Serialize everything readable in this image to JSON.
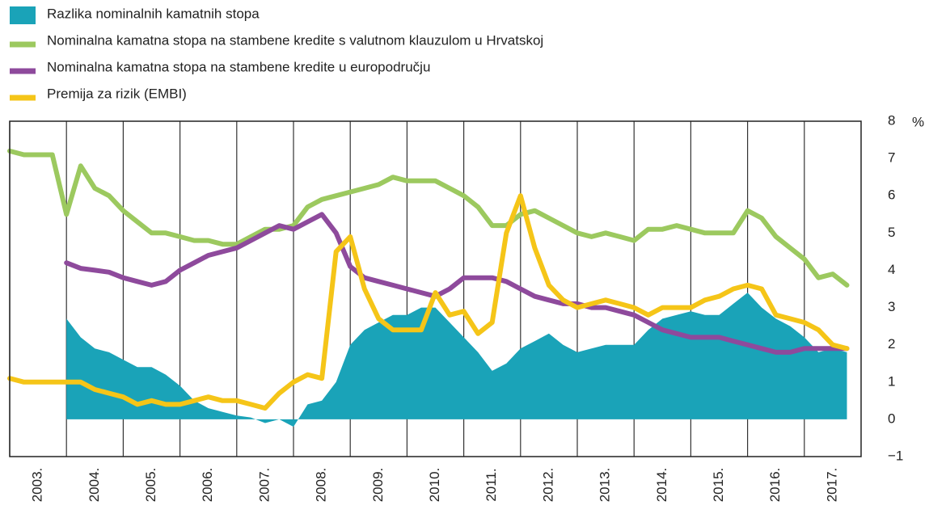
{
  "chart_data": {
    "type": "line",
    "x": [
      2003,
      2003.25,
      2003.5,
      2003.75,
      2004,
      2004.25,
      2004.5,
      2004.75,
      2005,
      2005.25,
      2005.5,
      2005.75,
      2006,
      2006.25,
      2006.5,
      2006.75,
      2007,
      2007.25,
      2007.5,
      2007.75,
      2008,
      2008.25,
      2008.5,
      2008.75,
      2009,
      2009.25,
      2009.5,
      2009.75,
      2010,
      2010.25,
      2010.5,
      2010.75,
      2011,
      2011.25,
      2011.5,
      2011.75,
      2012,
      2012.25,
      2012.5,
      2012.75,
      2013,
      2013.25,
      2013.5,
      2013.75,
      2014,
      2014.25,
      2014.5,
      2014.75,
      2015,
      2015.25,
      2015.5,
      2015.75,
      2016,
      2016.25,
      2016.5,
      2016.75,
      2017,
      2017.25,
      2017.5,
      2017.75
    ],
    "series": [
      {
        "name": "Razlika nominalnih kamatnih stopa",
        "kind": "area",
        "color": "#1aa3b8",
        "values": [
          null,
          null,
          null,
          null,
          2.7,
          2.2,
          1.9,
          1.8,
          1.6,
          1.4,
          1.4,
          1.2,
          0.9,
          0.5,
          0.3,
          0.2,
          0.1,
          0.05,
          -0.1,
          0.0,
          -0.2,
          0.4,
          0.5,
          1.0,
          2.0,
          2.4,
          2.6,
          2.8,
          2.8,
          3.0,
          3.0,
          2.6,
          2.2,
          1.8,
          1.3,
          1.5,
          1.9,
          2.1,
          2.3,
          2.0,
          1.8,
          1.9,
          2.0,
          2.0,
          2.0,
          2.4,
          2.7,
          2.8,
          2.9,
          2.8,
          2.8,
          3.1,
          3.4,
          3.0,
          2.7,
          2.5,
          2.2,
          1.8,
          1.9,
          1.8
        ]
      },
      {
        "name": "Nominalna kamatna stopa na stambene kredite s valutnom klauzulom u Hrvatskoj",
        "color": "#9cc95f",
        "values": [
          7.2,
          7.1,
          7.1,
          7.1,
          5.5,
          6.8,
          6.2,
          6.0,
          5.6,
          5.3,
          5.0,
          5.0,
          4.9,
          4.8,
          4.8,
          4.7,
          4.7,
          4.9,
          5.1,
          5.1,
          5.2,
          5.7,
          5.9,
          6.0,
          6.1,
          6.2,
          6.3,
          6.5,
          6.4,
          6.4,
          6.4,
          6.2,
          6.0,
          5.7,
          5.2,
          5.2,
          5.5,
          5.6,
          5.4,
          5.2,
          5.0,
          4.9,
          5.0,
          4.9,
          4.8,
          5.1,
          5.1,
          5.2,
          5.1,
          5.0,
          5.0,
          5.0,
          5.6,
          5.4,
          4.9,
          4.6,
          4.3,
          3.8,
          3.9,
          3.6
        ]
      },
      {
        "name": "Nominalna kamatna stopa na stambene kredite u europodručju",
        "color": "#8e4a9c",
        "values": [
          null,
          null,
          null,
          null,
          4.2,
          4.05,
          4.0,
          3.95,
          3.8,
          3.7,
          3.6,
          3.7,
          4.0,
          4.2,
          4.4,
          4.5,
          4.6,
          4.8,
          5.0,
          5.2,
          5.1,
          5.3,
          5.5,
          5.0,
          4.1,
          3.8,
          3.7,
          3.6,
          3.5,
          3.4,
          3.3,
          3.5,
          3.8,
          3.8,
          3.8,
          3.7,
          3.5,
          3.3,
          3.2,
          3.1,
          3.1,
          3.0,
          3.0,
          2.9,
          2.8,
          2.6,
          2.4,
          2.3,
          2.2,
          2.2,
          2.2,
          2.1,
          2.0,
          1.9,
          1.8,
          1.8,
          1.9,
          1.9,
          1.9,
          1.9
        ]
      },
      {
        "name": "Premija za rizik (EMBI)",
        "color": "#f5c518",
        "values": [
          1.1,
          1.0,
          1.0,
          1.0,
          1.0,
          1.0,
          0.8,
          0.7,
          0.6,
          0.4,
          0.5,
          0.4,
          0.4,
          0.5,
          0.6,
          0.5,
          0.5,
          0.4,
          0.3,
          0.7,
          1.0,
          1.2,
          1.1,
          4.5,
          4.9,
          3.5,
          2.7,
          2.4,
          2.4,
          2.4,
          3.4,
          2.8,
          2.9,
          2.3,
          2.6,
          5.0,
          6.0,
          4.6,
          3.6,
          3.2,
          3.0,
          3.1,
          3.2,
          3.1,
          3.0,
          2.8,
          3.0,
          3.0,
          3.0,
          3.2,
          3.3,
          3.5,
          3.6,
          3.5,
          2.8,
          2.7,
          2.6,
          2.4,
          2.0,
          1.9
        ]
      }
    ],
    "y_unit": "%",
    "xlim": [
      2003,
      2018
    ],
    "xticks": [
      {
        "value": 2003,
        "label": "2003."
      },
      {
        "value": 2004,
        "label": "2004."
      },
      {
        "value": 2005,
        "label": "2005."
      },
      {
        "value": 2006,
        "label": "2006."
      },
      {
        "value": 2007,
        "label": "2007."
      },
      {
        "value": 2008,
        "label": "2008."
      },
      {
        "value": 2009,
        "label": "2009."
      },
      {
        "value": 2010,
        "label": "2010."
      },
      {
        "value": 2011,
        "label": "2011."
      },
      {
        "value": 2012,
        "label": "2012."
      },
      {
        "value": 2013,
        "label": "2013."
      },
      {
        "value": 2014,
        "label": "2014."
      },
      {
        "value": 2015,
        "label": "2015."
      },
      {
        "value": 2016,
        "label": "2016."
      },
      {
        "value": 2017,
        "label": "2017."
      }
    ],
    "ylim": [
      -1,
      8
    ],
    "yticks": [
      {
        "value": -1,
        "label": "−1"
      },
      0,
      1,
      2,
      3,
      4,
      5,
      6,
      7,
      8
    ],
    "grid": "x",
    "legend": "top-left"
  }
}
